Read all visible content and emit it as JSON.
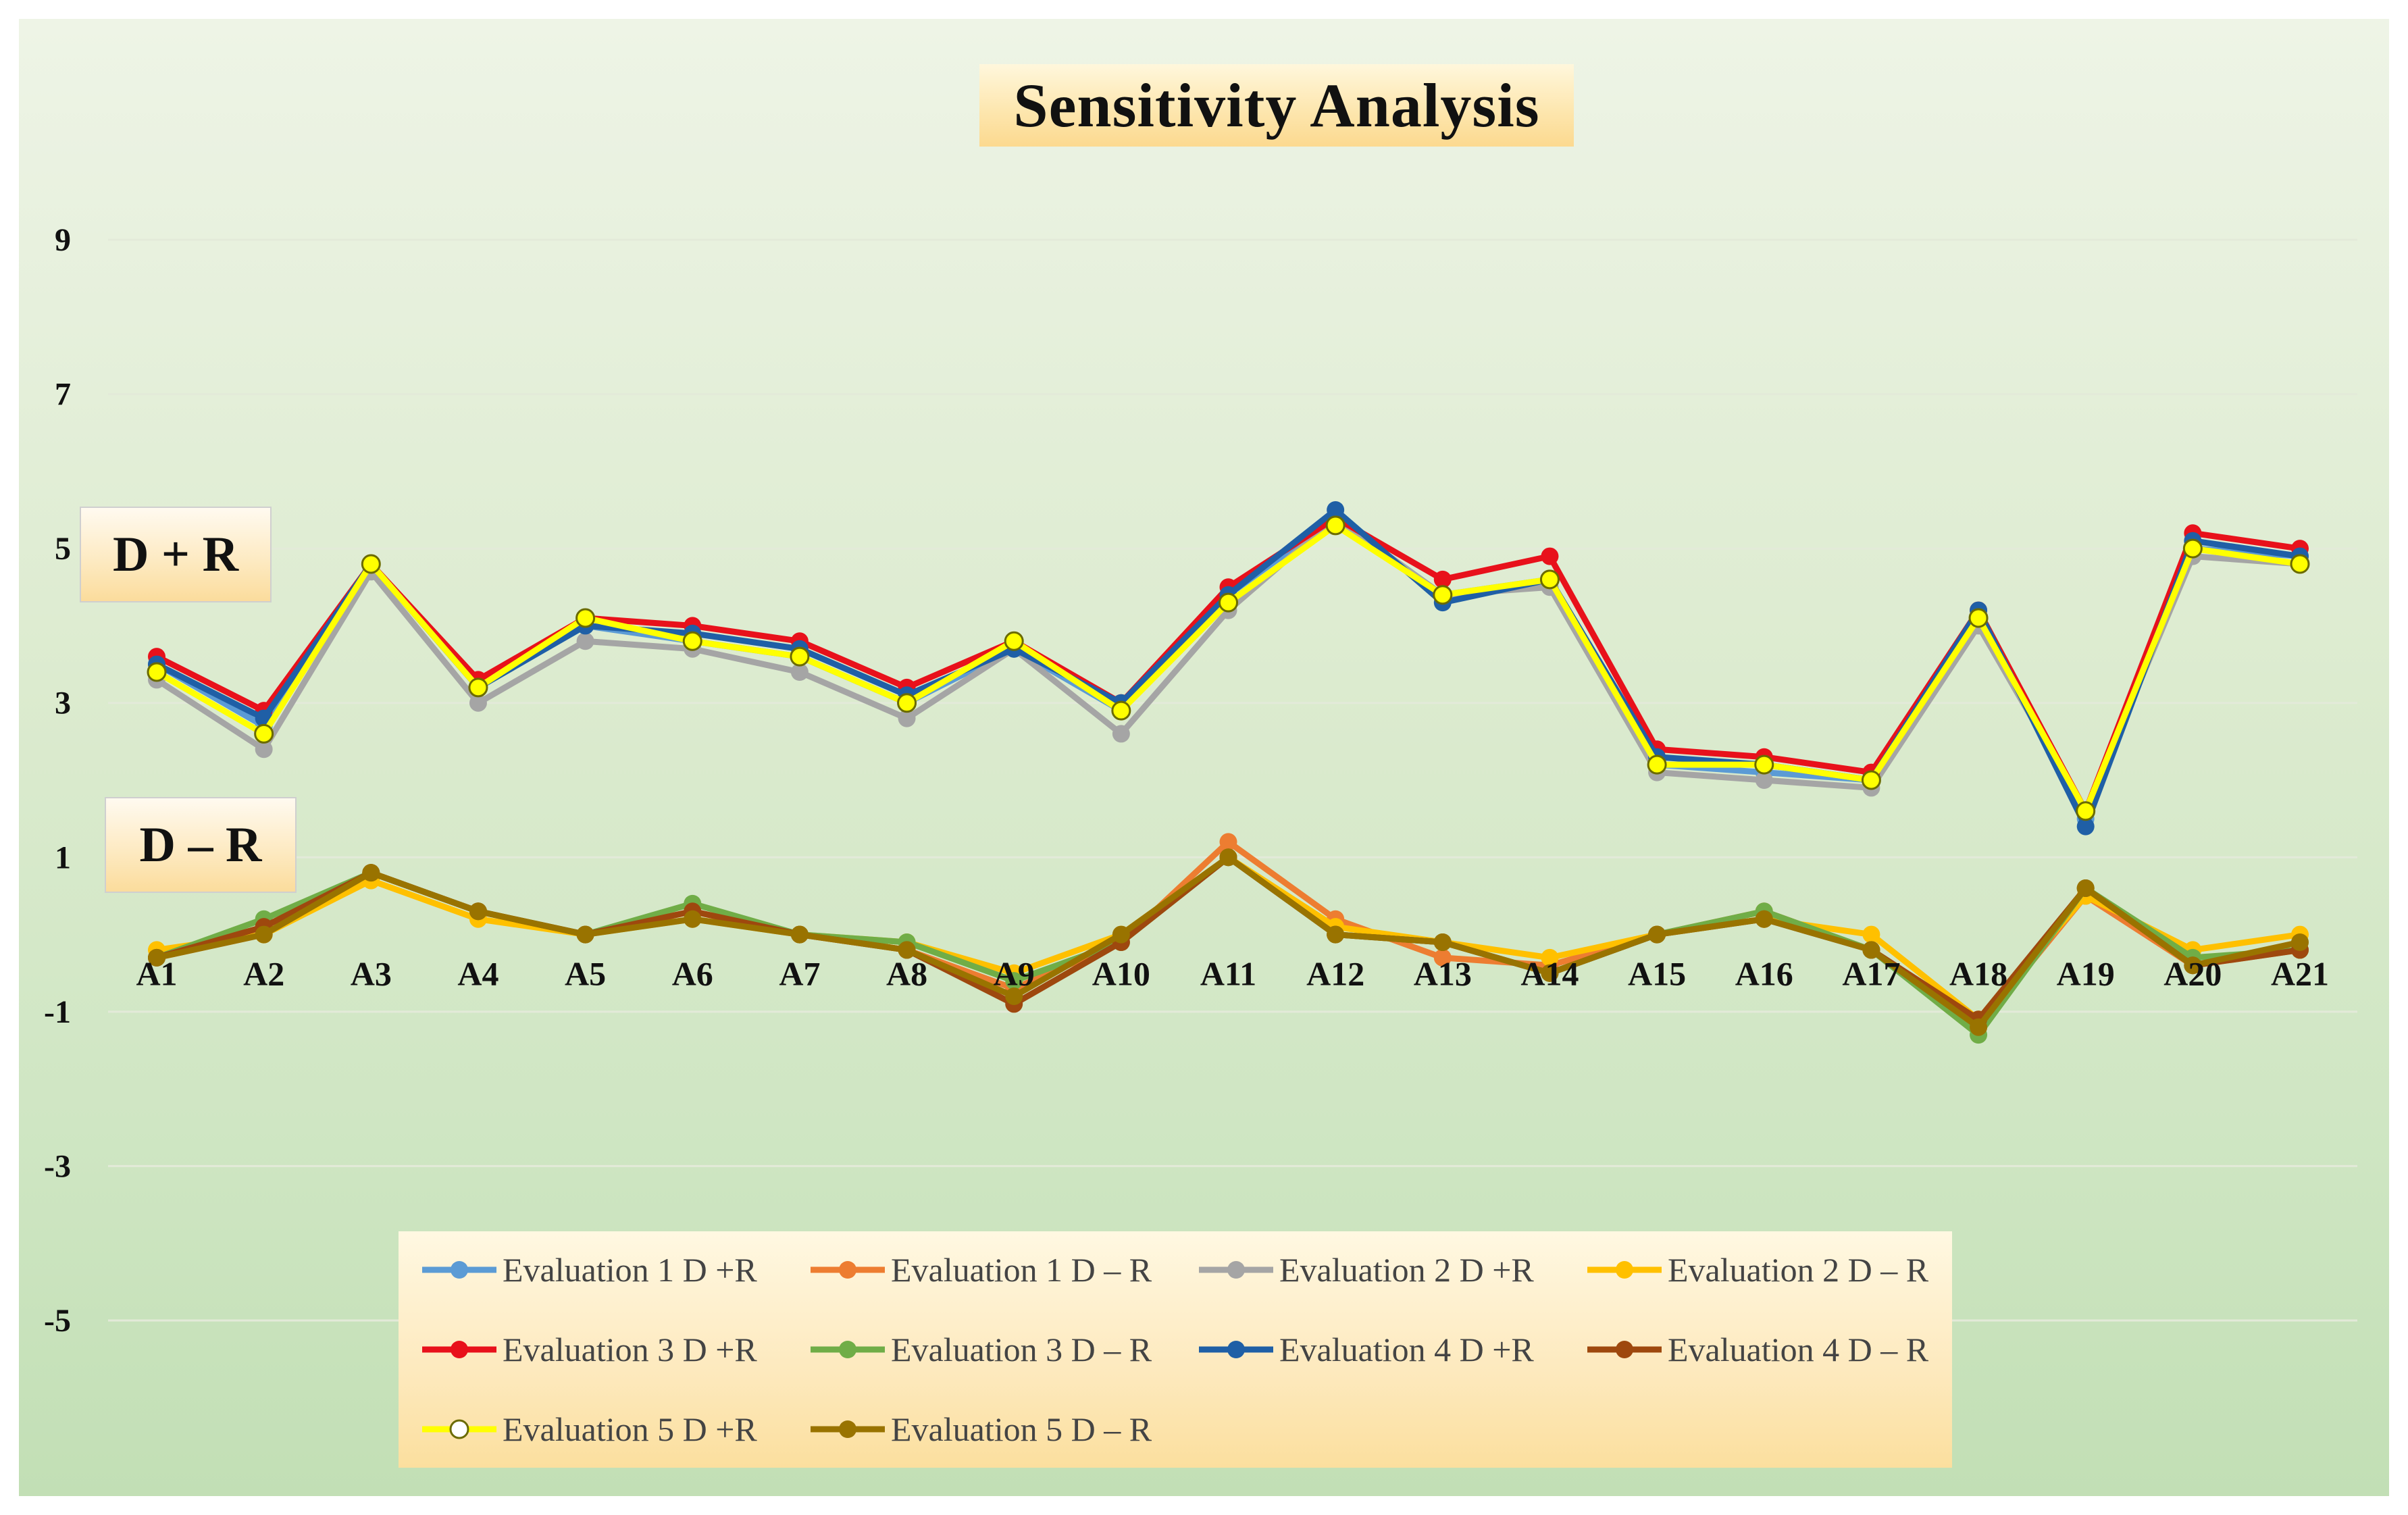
{
  "chart_data": {
    "type": "line",
    "title": "Sensitivity Analysis",
    "xlabel": "",
    "ylabel": "",
    "ylim": [
      -7,
      10
    ],
    "yticks": [
      9,
      7,
      5,
      3,
      1,
      -1,
      -3,
      -5
    ],
    "grid": true,
    "legend_position": "bottom",
    "annotations": [
      "D + R",
      "D – R"
    ],
    "categories": [
      "A1",
      "A2",
      "A3",
      "A4",
      "A5",
      "A6",
      "A7",
      "A8",
      "A9",
      "A10",
      "A11",
      "A12",
      "A13",
      "A14",
      "A15",
      "A16",
      "A17",
      "A18",
      "A19",
      "A20",
      "A21"
    ],
    "series": [
      {
        "name": "Evaluation 1 D +R",
        "color": "#5b9bd5",
        "marker": "filled",
        "values": [
          3.5,
          2.7,
          4.8,
          3.2,
          4.0,
          3.8,
          3.6,
          3.0,
          3.7,
          2.9,
          4.4,
          5.4,
          4.4,
          4.6,
          2.2,
          2.1,
          2.0,
          4.1,
          1.5,
          5.0,
          4.9
        ]
      },
      {
        "name": "Evaluation 1 D – R",
        "color": "#ed7d31",
        "marker": "filled",
        "values": [
          -0.3,
          0.0,
          0.8,
          0.3,
          0.0,
          0.3,
          0.0,
          -0.2,
          -0.7,
          -0.1,
          1.2,
          0.2,
          -0.3,
          -0.4,
          0.0,
          0.3,
          -0.2,
          -1.2,
          0.5,
          -0.4,
          -0.2
        ]
      },
      {
        "name": "Evaluation 2 D +R",
        "color": "#a5a5a5",
        "marker": "filled",
        "values": [
          3.3,
          2.4,
          4.7,
          3.0,
          3.8,
          3.7,
          3.4,
          2.8,
          3.7,
          2.6,
          4.2,
          5.4,
          4.4,
          4.5,
          2.1,
          2.0,
          1.9,
          4.0,
          1.6,
          4.9,
          4.8
        ]
      },
      {
        "name": "Evaluation 2 D – R",
        "color": "#ffc000",
        "marker": "filled",
        "values": [
          -0.2,
          0.0,
          0.7,
          0.2,
          0.0,
          0.2,
          0.0,
          -0.1,
          -0.5,
          0.0,
          1.0,
          0.1,
          -0.1,
          -0.3,
          0.0,
          0.2,
          0.0,
          -1.1,
          0.5,
          -0.2,
          0.0
        ]
      },
      {
        "name": "Evaluation 3 D +R",
        "color": "#e8111b",
        "marker": "filled",
        "values": [
          3.6,
          2.9,
          4.8,
          3.3,
          4.1,
          4.0,
          3.8,
          3.2,
          3.8,
          3.0,
          4.5,
          5.4,
          4.6,
          4.9,
          2.4,
          2.3,
          2.1,
          4.2,
          1.6,
          5.2,
          5.0
        ]
      },
      {
        "name": "Evaluation 3 D – R",
        "color": "#70ad47",
        "marker": "filled",
        "values": [
          -0.3,
          0.2,
          0.8,
          0.3,
          0.0,
          0.4,
          0.0,
          -0.1,
          -0.6,
          -0.1,
          1.0,
          0.0,
          -0.1,
          -0.5,
          0.0,
          0.3,
          -0.2,
          -1.3,
          0.6,
          -0.3,
          -0.2
        ]
      },
      {
        "name": "Evaluation 4 D +R",
        "color": "#1f5fa6",
        "marker": "filled",
        "values": [
          3.5,
          2.8,
          4.8,
          3.2,
          4.0,
          3.9,
          3.7,
          3.1,
          3.7,
          3.0,
          4.4,
          5.5,
          4.3,
          4.6,
          2.3,
          2.2,
          2.0,
          4.2,
          1.4,
          5.1,
          4.9
        ]
      },
      {
        "name": "Evaluation 4 D – R",
        "color": "#9e480e",
        "marker": "filled",
        "values": [
          -0.3,
          0.1,
          0.8,
          0.3,
          0.0,
          0.3,
          0.0,
          -0.2,
          -0.9,
          -0.1,
          1.0,
          0.0,
          -0.1,
          -0.5,
          0.0,
          0.2,
          -0.2,
          -1.1,
          0.6,
          -0.4,
          -0.2
        ]
      },
      {
        "name": "Evaluation 5 D +R",
        "color": "#ffff00",
        "marker": "hollow",
        "values": [
          3.4,
          2.6,
          4.8,
          3.2,
          4.1,
          3.8,
          3.6,
          3.0,
          3.8,
          2.9,
          4.3,
          5.3,
          4.4,
          4.6,
          2.2,
          2.2,
          2.0,
          4.1,
          1.6,
          5.0,
          4.8
        ]
      },
      {
        "name": "Evaluation 5 D – R",
        "color": "#997300",
        "marker": "filled",
        "values": [
          -0.3,
          0.0,
          0.8,
          0.3,
          0.0,
          0.2,
          0.0,
          -0.2,
          -0.8,
          0.0,
          1.0,
          0.0,
          -0.1,
          -0.5,
          0.0,
          0.2,
          -0.2,
          -1.2,
          0.6,
          -0.4,
          -0.1
        ]
      }
    ]
  }
}
